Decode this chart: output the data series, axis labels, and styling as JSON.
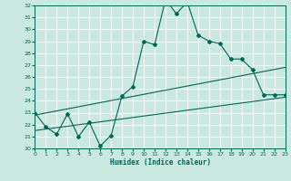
{
  "xlabel": "Humidex (Indice chaleur)",
  "xlim": [
    0,
    23
  ],
  "ylim": [
    20,
    32
  ],
  "xticks": [
    0,
    1,
    2,
    3,
    4,
    5,
    6,
    7,
    8,
    9,
    10,
    11,
    12,
    13,
    14,
    15,
    16,
    17,
    18,
    19,
    20,
    21,
    22,
    23
  ],
  "yticks": [
    20,
    21,
    22,
    23,
    24,
    25,
    26,
    27,
    28,
    29,
    30,
    31,
    32
  ],
  "bg_color": "#c8e8e0",
  "grid_color": "#b0d8d0",
  "line_color": "#006655",
  "line1_x": [
    0,
    1,
    2,
    3,
    4,
    5,
    6,
    7,
    8,
    9,
    10,
    11,
    12,
    13,
    14,
    15,
    16,
    17,
    18,
    19,
    20,
    21,
    22,
    23
  ],
  "line1_y": [
    23.0,
    21.8,
    21.2,
    22.9,
    21.0,
    22.2,
    20.2,
    21.1,
    24.4,
    25.2,
    29.0,
    28.7,
    32.5,
    31.3,
    32.3,
    29.5,
    29.0,
    28.8,
    27.5,
    27.5,
    26.6,
    24.5,
    24.5,
    24.5
  ],
  "line2_x": [
    0,
    23
  ],
  "line2_y": [
    21.5,
    24.3
  ],
  "line3_x": [
    0,
    23
  ],
  "line3_y": [
    22.8,
    26.8
  ]
}
